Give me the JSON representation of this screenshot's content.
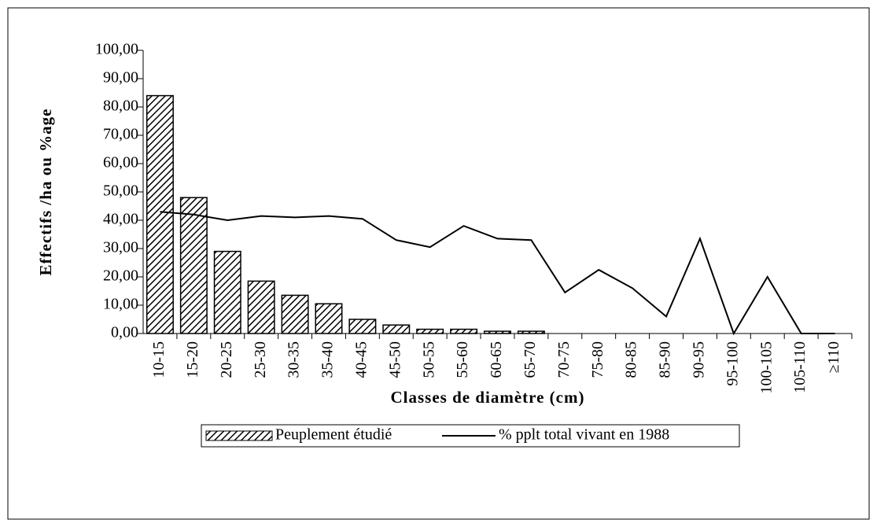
{
  "chart_data": {
    "type": "combo",
    "xlabel": "Classes de diamètre (cm)",
    "ylabel": "Effectifs /ha ou %age",
    "categories": [
      "10-15",
      "15-20",
      "20-25",
      "25-30",
      "30-35",
      "35-40",
      "40-45",
      "45-50",
      "50-55",
      "55-60",
      "60-65",
      "65-70",
      "70-75",
      "75-80",
      "80-85",
      "85-90",
      "90-95",
      "95-100",
      "100-105",
      "105-110",
      "≥110"
    ],
    "series": [
      {
        "name": "Peuplement étudié",
        "type": "bar",
        "color": "#000000",
        "values": [
          84,
          48,
          29,
          18.5,
          13.5,
          10.5,
          5,
          3,
          1.5,
          1.5,
          0.8,
          0.8,
          0,
          0,
          0,
          0,
          0,
          0,
          0,
          0,
          0
        ]
      },
      {
        "name": "% pplt total vivant en 1988",
        "type": "line",
        "color": "#000000",
        "values": [
          43,
          42,
          40,
          41.5,
          41,
          41.5,
          40.5,
          33,
          30.5,
          38,
          33.5,
          33,
          14.5,
          22.5,
          16,
          6,
          33.5,
          0,
          20,
          0,
          0
        ]
      }
    ],
    "ylim": [
      0,
      100
    ],
    "yticks": [
      {
        "value": 0,
        "label": "0,00"
      },
      {
        "value": 10,
        "label": "10,00"
      },
      {
        "value": 20,
        "label": "20,00"
      },
      {
        "value": 30,
        "label": "30,00"
      },
      {
        "value": 40,
        "label": "40,00"
      },
      {
        "value": 50,
        "label": "50,00"
      },
      {
        "value": 60,
        "label": "60,00"
      },
      {
        "value": 70,
        "label": "70,00"
      },
      {
        "value": 80,
        "label": "80,00"
      },
      {
        "value": 90,
        "label": "90,00"
      },
      {
        "value": 100,
        "label": "100,00"
      }
    ],
    "legend": "bottom"
  }
}
